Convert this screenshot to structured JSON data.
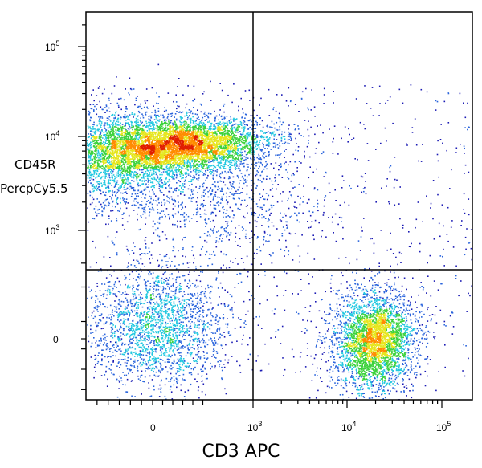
{
  "chart_data": {
    "type": "scatter",
    "style": "density-colored flow cytometry dot plot with quadrant gates",
    "xlabel": "CD3 APC",
    "ylabel_lines": [
      "CD45R",
      "PercpCy5.5"
    ],
    "x_scale": "biexponential",
    "y_scale": "biexponential",
    "x_ticks": [
      {
        "label": "0",
        "exp": ""
      },
      {
        "label": "10",
        "exp": "3"
      },
      {
        "label": "10",
        "exp": "4"
      },
      {
        "label": "10",
        "exp": "5"
      }
    ],
    "y_ticks": [
      {
        "label": "0",
        "exp": ""
      },
      {
        "label": "10",
        "exp": "3"
      },
      {
        "label": "10",
        "exp": "4"
      },
      {
        "label": "10",
        "exp": "5"
      }
    ],
    "xlim": [
      -600,
      150000
    ],
    "ylim": [
      -600,
      300000
    ],
    "quadrant_gate": {
      "x": 1000,
      "y": 400
    },
    "density_colors": [
      "#1a1ab4",
      "#2a64dc",
      "#22c8e0",
      "#3cd23c",
      "#e6e61e",
      "#ff8c00",
      "#e01e00"
    ],
    "populations": [
      {
        "name": "CD45R+ CD3-",
        "center": {
          "x": 300,
          "y": 9000
        },
        "relative_size": 0.55
      },
      {
        "name": "CD45R- CD3+",
        "center": {
          "x": 20000,
          "y": 0
        },
        "relative_size": 0.2
      },
      {
        "name": "CD45R- CD3-",
        "center": {
          "x": 0,
          "y": 0
        },
        "relative_size": 0.2
      },
      {
        "name": "scattered events",
        "center": {
          "x": 3000,
          "y": 3000
        },
        "relative_size": 0.05
      }
    ]
  }
}
